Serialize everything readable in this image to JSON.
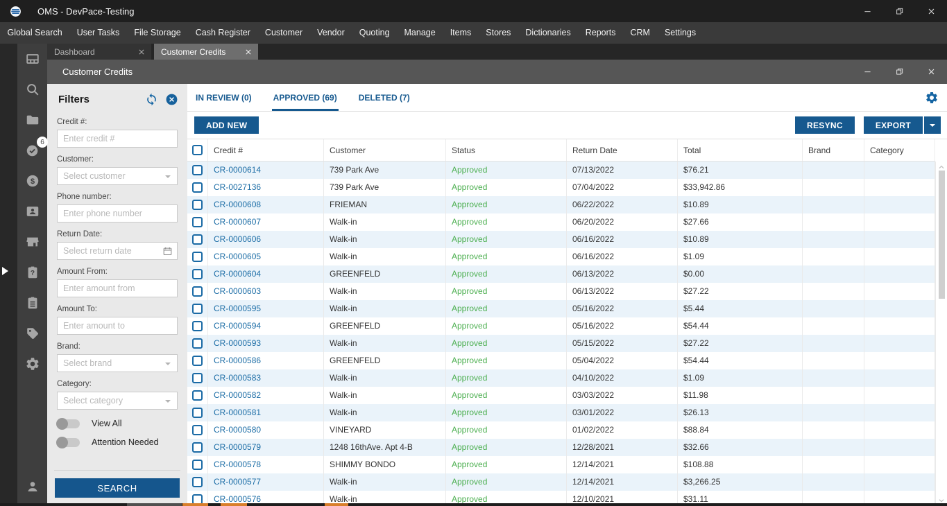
{
  "window": {
    "title": "OMS - DevPace-Testing",
    "controls": [
      "minimize",
      "restore",
      "close"
    ]
  },
  "menu": {
    "items": [
      "Global Search",
      "User Tasks",
      "File Storage",
      "Cash Register",
      "Customer",
      "Vendor",
      "Quoting",
      "Manage",
      "Items",
      "Stores",
      "Dictionaries",
      "Reports",
      "CRM",
      "Settings"
    ]
  },
  "sidebar": {
    "items": [
      {
        "name": "dashboard"
      },
      {
        "name": "search"
      },
      {
        "name": "folders"
      },
      {
        "name": "approvals",
        "badge": "6"
      },
      {
        "name": "payments"
      },
      {
        "name": "contacts"
      },
      {
        "name": "stores"
      },
      {
        "name": "support"
      },
      {
        "name": "tasks"
      },
      {
        "name": "tags"
      },
      {
        "name": "settings"
      }
    ],
    "bottom": {
      "name": "user"
    }
  },
  "tabs": [
    {
      "label": "Dashboard",
      "active": false
    },
    {
      "label": "Customer Credits",
      "active": true
    }
  ],
  "panel": {
    "title": "Customer Credits"
  },
  "filters": {
    "title": "Filters",
    "fields": [
      {
        "label": "Credit #:",
        "placeholder": "Enter credit #",
        "type": "text"
      },
      {
        "label": "Customer:",
        "placeholder": "Select customer",
        "type": "select"
      },
      {
        "label": "Phone number:",
        "placeholder": "Enter phone number",
        "type": "text"
      },
      {
        "label": "Return Date:",
        "placeholder": "Select return date",
        "type": "date"
      },
      {
        "label": "Amount From:",
        "placeholder": "Enter amount from",
        "type": "text"
      },
      {
        "label": "Amount To:",
        "placeholder": "Enter amount to",
        "type": "text"
      },
      {
        "label": "Brand:",
        "placeholder": "Select brand",
        "type": "select"
      },
      {
        "label": "Category:",
        "placeholder": "Select category",
        "type": "select"
      }
    ],
    "toggles": [
      {
        "label": "View All",
        "on": false
      },
      {
        "label": "Attention Needed",
        "on": false
      }
    ],
    "search_label": "SEARCH"
  },
  "view_tabs": [
    {
      "label": "IN REVIEW (0)",
      "active": false
    },
    {
      "label": "APPROVED (69)",
      "active": true
    },
    {
      "label": "DELETED (7)",
      "active": false
    }
  ],
  "toolbar": {
    "add_new": "ADD NEW",
    "resync": "RESYNC",
    "export": "EXPORT"
  },
  "table": {
    "columns": [
      "Credit #",
      "Customer",
      "Status",
      "Return Date",
      "Total",
      "Brand",
      "Category"
    ],
    "rows": [
      [
        "CR-0000614",
        "739 Park Ave",
        "Approved",
        "07/13/2022",
        "$76.21",
        "",
        ""
      ],
      [
        "CR-0027136",
        "739 Park Ave",
        "Approved",
        "07/04/2022",
        "$33,942.86",
        "",
        ""
      ],
      [
        "CR-0000608",
        "FRIEMAN",
        "Approved",
        "06/22/2022",
        "$10.89",
        "",
        ""
      ],
      [
        "CR-0000607",
        "Walk-in",
        "Approved",
        "06/20/2022",
        "$27.66",
        "",
        ""
      ],
      [
        "CR-0000606",
        "Walk-in",
        "Approved",
        "06/16/2022",
        "$10.89",
        "",
        ""
      ],
      [
        "CR-0000605",
        "Walk-in",
        "Approved",
        "06/16/2022",
        "$1.09",
        "",
        ""
      ],
      [
        "CR-0000604",
        "GREENFELD",
        "Approved",
        "06/13/2022",
        "$0.00",
        "",
        ""
      ],
      [
        "CR-0000603",
        "Walk-in",
        "Approved",
        "06/13/2022",
        "$27.22",
        "",
        ""
      ],
      [
        "CR-0000595",
        "Walk-in",
        "Approved",
        "05/16/2022",
        "$5.44",
        "",
        ""
      ],
      [
        "CR-0000594",
        "GREENFELD",
        "Approved",
        "05/16/2022",
        "$54.44",
        "",
        ""
      ],
      [
        "CR-0000593",
        "Walk-in",
        "Approved",
        "05/15/2022",
        "$27.22",
        "",
        ""
      ],
      [
        "CR-0000586",
        "GREENFELD",
        "Approved",
        "05/04/2022",
        "$54.44",
        "",
        ""
      ],
      [
        "CR-0000583",
        "Walk-in",
        "Approved",
        "04/10/2022",
        "$1.09",
        "",
        ""
      ],
      [
        "CR-0000582",
        "Walk-in",
        "Approved",
        "03/03/2022",
        "$11.98",
        "",
        ""
      ],
      [
        "CR-0000581",
        "Walk-in",
        "Approved",
        "03/01/2022",
        "$26.13",
        "",
        ""
      ],
      [
        "CR-0000580",
        "VINEYARD",
        "Approved",
        "01/02/2022",
        "$88.84",
        "",
        ""
      ],
      [
        "CR-0000579",
        "1248 16thAve. Apt 4-B",
        "Approved",
        "12/28/2021",
        "$32.66",
        "",
        ""
      ],
      [
        "CR-0000578",
        "SHIMMY BONDO",
        "Approved",
        "12/14/2021",
        "$108.88",
        "",
        ""
      ],
      [
        "CR-0000577",
        "Walk-in",
        "Approved",
        "12/14/2021",
        "$3,266.25",
        "",
        ""
      ],
      [
        "CR-0000576",
        "Walk-in",
        "Approved",
        "12/10/2021",
        "$31.11",
        "",
        ""
      ]
    ]
  },
  "colors": {
    "accent_blue": "#16598f",
    "link_blue": "#1c6da6",
    "status_green": "#4caf50",
    "row_alt": "#eaf3fa",
    "titlebar": "#1f1f1f",
    "taskbar_orange": "#d97f2c"
  }
}
